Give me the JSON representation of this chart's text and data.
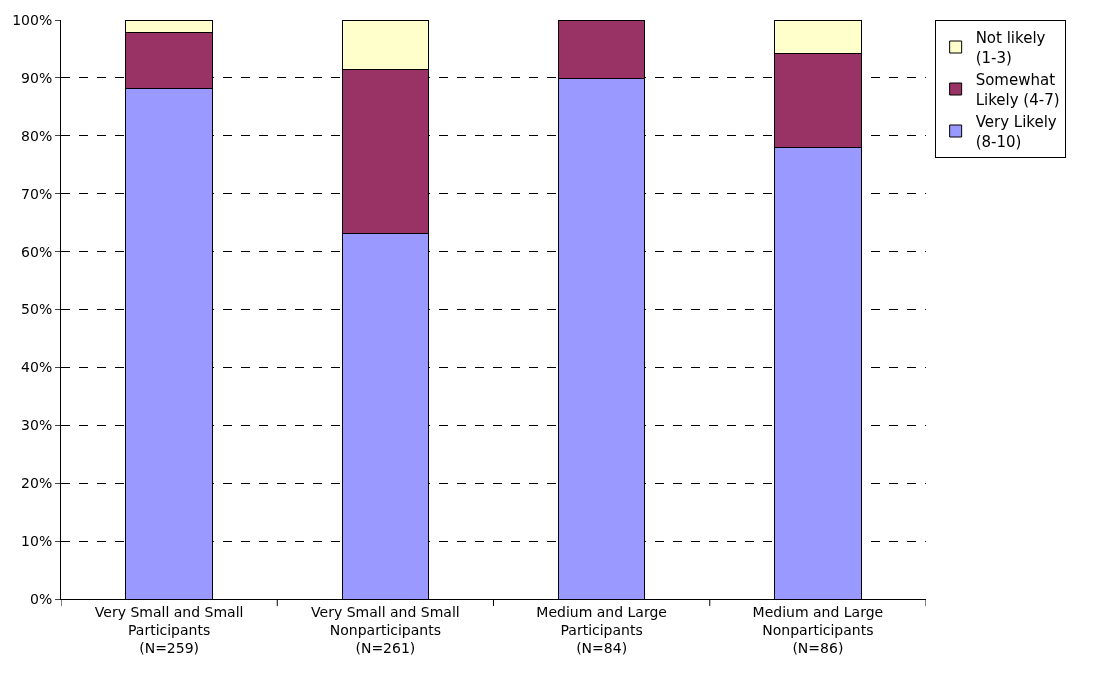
{
  "chart_data": {
    "type": "bar",
    "stacked": true,
    "categories": [
      "Very Small and Small\nParticipants\n(N=259)",
      "Very Small and Small\nNonparticipants\n(N=261)",
      "Medium and Large\nParticipants\n(N=84)",
      "Medium and Large\nNonparticipants\n(N=86)"
    ],
    "series": [
      {
        "name": "Very Likely\n(8-10)",
        "color": "#9999ff",
        "values": [
          88.2,
          63.1,
          89.9,
          77.9
        ]
      },
      {
        "name": "Somewhat\nLikely (4-7)",
        "color": "#993366",
        "values": [
          9.7,
          28.3,
          10.1,
          16.4
        ]
      },
      {
        "name": "Not likely\n(1-3)",
        "color": "#ffffcc",
        "values": [
          2.1,
          8.6,
          null,
          5.7
        ]
      }
    ],
    "ylim": [
      0,
      100
    ],
    "yticks": [
      {
        "value": 0,
        "label": "0%"
      },
      {
        "value": 10,
        "label": "10%"
      },
      {
        "value": 20,
        "label": "20%"
      },
      {
        "value": 30,
        "label": "30%"
      },
      {
        "value": 40,
        "label": "40%"
      },
      {
        "value": 50,
        "label": "50%"
      },
      {
        "value": 60,
        "label": "60%"
      },
      {
        "value": 70,
        "label": "70%"
      },
      {
        "value": 80,
        "label": "80%"
      },
      {
        "value": 90,
        "label": "90%"
      },
      {
        "value": 100,
        "label": "100%"
      }
    ],
    "grid": "y",
    "legend": "top right"
  }
}
